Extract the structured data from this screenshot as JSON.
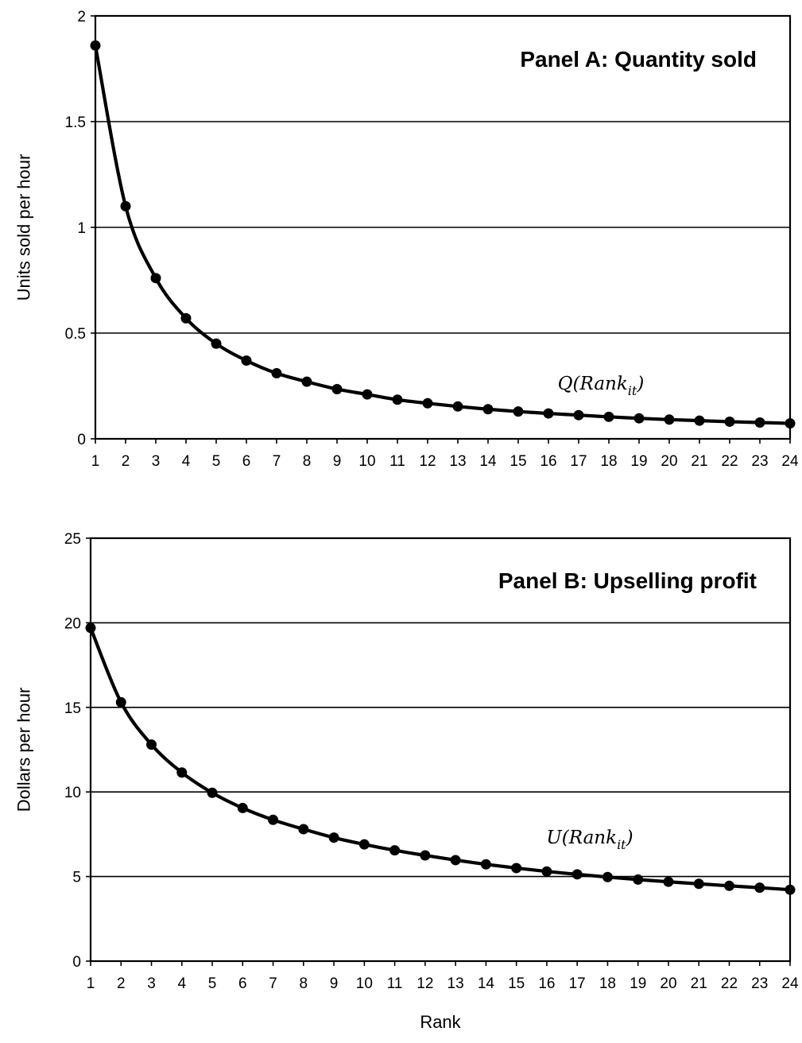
{
  "chart_data": [
    {
      "type": "line",
      "title": "Panel A: Quantity sold",
      "ylabel": "Units sold per hour",
      "xlabel": "",
      "curve_label": {
        "main": "Q(Rank",
        "sub": "it",
        "close": ")"
      },
      "x": [
        1,
        2,
        3,
        4,
        5,
        6,
        7,
        8,
        9,
        10,
        11,
        12,
        13,
        14,
        15,
        16,
        17,
        18,
        19,
        20,
        21,
        22,
        23,
        24
      ],
      "x_ticks": [
        "1",
        "2",
        "3",
        "4",
        "5",
        "6",
        "7",
        "8",
        "9",
        "10",
        "11",
        "12",
        "13",
        "14",
        "15",
        "16",
        "17",
        "18",
        "19",
        "20",
        "21",
        "22",
        "23",
        "24"
      ],
      "y_ticks": [
        "0",
        "0.5",
        "1",
        "1.5",
        "2"
      ],
      "ylim": [
        0,
        2
      ],
      "grid": true,
      "series": [
        {
          "values": [
            1.86,
            1.1,
            0.76,
            0.57,
            0.45,
            0.37,
            0.31,
            0.27,
            0.235,
            0.21,
            0.185,
            0.168,
            0.153,
            0.14,
            0.129,
            0.12,
            0.112,
            0.104,
            0.097,
            0.091,
            0.086,
            0.081,
            0.077,
            0.073
          ],
          "color": "#000000"
        }
      ]
    },
    {
      "type": "line",
      "title": "Panel B: Upselling profit",
      "ylabel": "Dollars per hour",
      "xlabel": "Rank",
      "curve_label": {
        "main": "U(Rank",
        "sub": "it",
        "close": ")"
      },
      "x": [
        1,
        2,
        3,
        4,
        5,
        6,
        7,
        8,
        9,
        10,
        11,
        12,
        13,
        14,
        15,
        16,
        17,
        18,
        19,
        20,
        21,
        22,
        23,
        24
      ],
      "x_ticks": [
        "1",
        "2",
        "3",
        "4",
        "5",
        "6",
        "7",
        "8",
        "9",
        "10",
        "11",
        "12",
        "13",
        "14",
        "15",
        "16",
        "17",
        "18",
        "19",
        "20",
        "21",
        "22",
        "23",
        "24"
      ],
      "y_ticks": [
        "0",
        "5",
        "10",
        "15",
        "20",
        "25"
      ],
      "ylim": [
        0,
        25
      ],
      "grid": true,
      "series": [
        {
          "values": [
            19.7,
            15.3,
            12.8,
            11.15,
            9.95,
            9.05,
            8.35,
            7.8,
            7.3,
            6.9,
            6.55,
            6.25,
            5.97,
            5.72,
            5.5,
            5.3,
            5.13,
            4.97,
            4.82,
            4.69,
            4.57,
            4.45,
            4.34,
            4.22
          ],
          "color": "#000000"
        }
      ]
    }
  ]
}
